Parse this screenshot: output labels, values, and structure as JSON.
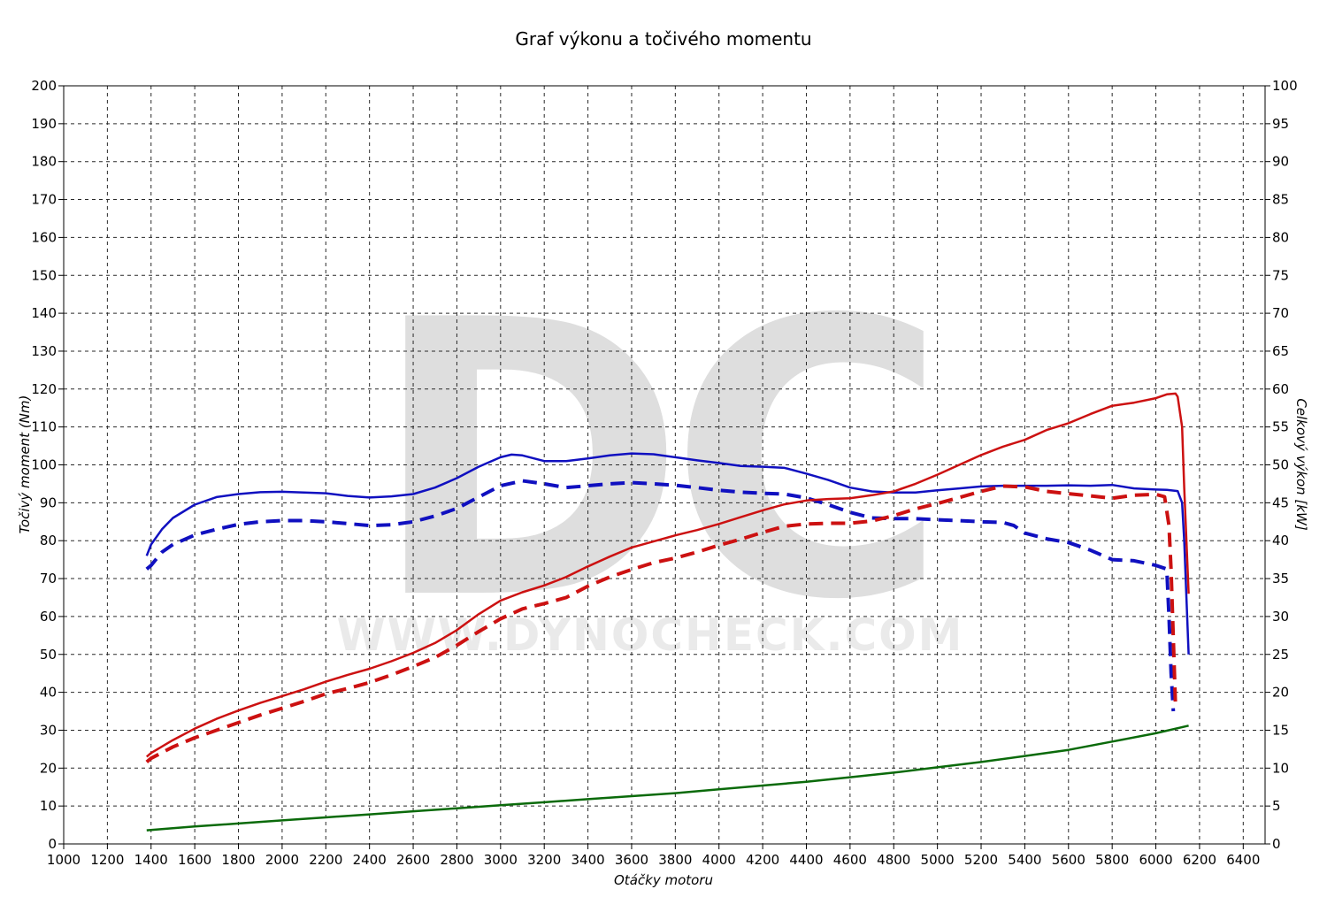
{
  "chart_data": {
    "type": "line",
    "title": "Graf výkonu a točivého momentu",
    "xlabel": "Otáčky motoru",
    "ylabel_left": "Točivý moment (Nm)",
    "ylabel_right": "Celkový výkon [kW]",
    "watermark": {
      "logo": "DC",
      "url": "WWW.DYNOCHECK.COM"
    },
    "xlim": [
      1000,
      6500
    ],
    "ylim_left": [
      0,
      200
    ],
    "ylim_right": [
      0,
      100
    ],
    "x_ticks": [
      1000,
      1200,
      1400,
      1600,
      1800,
      2000,
      2200,
      2400,
      2600,
      2800,
      3000,
      3200,
      3400,
      3600,
      3800,
      4000,
      4200,
      4400,
      4600,
      4800,
      5000,
      5200,
      5400,
      5600,
      5800,
      6000,
      6200,
      6400
    ],
    "y_ticks_left": [
      0,
      10,
      20,
      30,
      40,
      50,
      60,
      70,
      80,
      90,
      100,
      110,
      120,
      130,
      140,
      150,
      160,
      170,
      180,
      190,
      200
    ],
    "y_ticks_right": [
      0,
      5,
      10,
      15,
      20,
      25,
      30,
      35,
      40,
      45,
      50,
      55,
      60,
      65,
      70,
      75,
      80,
      85,
      90,
      95,
      100
    ],
    "grid": true,
    "colors": {
      "torque": "#1010c0",
      "power": "#cc1111",
      "loss": "#0a6a0a",
      "grid": "#2a2a2a",
      "watermark": "#dedede"
    },
    "series": [
      {
        "key": "torque_tuned",
        "axis": "left",
        "color": "#1010c0",
        "dash": false,
        "points": [
          [
            1380,
            76
          ],
          [
            1400,
            79
          ],
          [
            1450,
            83
          ],
          [
            1500,
            86
          ],
          [
            1600,
            89.5
          ],
          [
            1700,
            91.5
          ],
          [
            1800,
            92.3
          ],
          [
            1900,
            92.8
          ],
          [
            2000,
            92.9
          ],
          [
            2100,
            92.7
          ],
          [
            2200,
            92.5
          ],
          [
            2300,
            91.8
          ],
          [
            2400,
            91.4
          ],
          [
            2500,
            91.7
          ],
          [
            2600,
            92.3
          ],
          [
            2700,
            94
          ],
          [
            2800,
            96.5
          ],
          [
            2900,
            99.5
          ],
          [
            3000,
            102
          ],
          [
            3050,
            102.7
          ],
          [
            3100,
            102.5
          ],
          [
            3200,
            101
          ],
          [
            3300,
            101
          ],
          [
            3400,
            101.7
          ],
          [
            3500,
            102.5
          ],
          [
            3600,
            103
          ],
          [
            3700,
            102.8
          ],
          [
            3800,
            102
          ],
          [
            3900,
            101.2
          ],
          [
            4000,
            100.5
          ],
          [
            4100,
            99.7
          ],
          [
            4200,
            99.5
          ],
          [
            4300,
            99.2
          ],
          [
            4400,
            97.7
          ],
          [
            4500,
            96
          ],
          [
            4600,
            94
          ],
          [
            4700,
            93
          ],
          [
            4800,
            92.7
          ],
          [
            4900,
            92.7
          ],
          [
            5000,
            93.3
          ],
          [
            5100,
            93.8
          ],
          [
            5200,
            94.3
          ],
          [
            5300,
            94.5
          ],
          [
            5400,
            94.5
          ],
          [
            5500,
            94.5
          ],
          [
            5600,
            94.6
          ],
          [
            5700,
            94.5
          ],
          [
            5800,
            94.7
          ],
          [
            5900,
            93.8
          ],
          [
            6000,
            93.5
          ],
          [
            6050,
            93.4
          ],
          [
            6100,
            93.1
          ],
          [
            6120,
            90
          ],
          [
            6130,
            80
          ],
          [
            6140,
            65
          ],
          [
            6150,
            50
          ]
        ]
      },
      {
        "key": "torque_stock",
        "axis": "left",
        "color": "#1010c0",
        "dash": true,
        "points": [
          [
            1380,
            72.5
          ],
          [
            1400,
            73.5
          ],
          [
            1450,
            77
          ],
          [
            1500,
            79
          ],
          [
            1600,
            81.5
          ],
          [
            1700,
            83
          ],
          [
            1800,
            84.3
          ],
          [
            1900,
            85
          ],
          [
            2000,
            85.3
          ],
          [
            2100,
            85.3
          ],
          [
            2200,
            85
          ],
          [
            2300,
            84.5
          ],
          [
            2400,
            84
          ],
          [
            2500,
            84.2
          ],
          [
            2600,
            85
          ],
          [
            2700,
            86.5
          ],
          [
            2800,
            88.5
          ],
          [
            2900,
            91.5
          ],
          [
            3000,
            94.5
          ],
          [
            3100,
            95.8
          ],
          [
            3200,
            95
          ],
          [
            3300,
            94
          ],
          [
            3400,
            94.5
          ],
          [
            3500,
            95
          ],
          [
            3600,
            95.3
          ],
          [
            3700,
            95
          ],
          [
            3800,
            94.6
          ],
          [
            3900,
            94
          ],
          [
            4000,
            93.3
          ],
          [
            4100,
            92.8
          ],
          [
            4200,
            92.5
          ],
          [
            4300,
            92.3
          ],
          [
            4400,
            91.3
          ],
          [
            4500,
            89.5
          ],
          [
            4600,
            87.5
          ],
          [
            4700,
            86
          ],
          [
            4800,
            85.8
          ],
          [
            4900,
            85.8
          ],
          [
            5000,
            85.5
          ],
          [
            5100,
            85.3
          ],
          [
            5200,
            85
          ],
          [
            5300,
            84.8
          ],
          [
            5350,
            84
          ],
          [
            5400,
            82
          ],
          [
            5500,
            80.5
          ],
          [
            5600,
            79.5
          ],
          [
            5700,
            77.5
          ],
          [
            5800,
            75
          ],
          [
            5900,
            74.7
          ],
          [
            6000,
            73.5
          ],
          [
            6050,
            72.5
          ],
          [
            6060,
            60
          ],
          [
            6070,
            45
          ],
          [
            6080,
            35
          ]
        ]
      },
      {
        "key": "power_tuned",
        "axis": "right",
        "color": "#cc1111",
        "dash": false,
        "points": [
          [
            1380,
            11.5
          ],
          [
            1400,
            12
          ],
          [
            1500,
            13.7
          ],
          [
            1600,
            15.2
          ],
          [
            1700,
            16.5
          ],
          [
            1800,
            17.6
          ],
          [
            1900,
            18.6
          ],
          [
            2000,
            19.5
          ],
          [
            2100,
            20.4
          ],
          [
            2200,
            21.4
          ],
          [
            2300,
            22.3
          ],
          [
            2400,
            23.1
          ],
          [
            2500,
            24.1
          ],
          [
            2600,
            25.2
          ],
          [
            2700,
            26.5
          ],
          [
            2800,
            28.2
          ],
          [
            2900,
            30.3
          ],
          [
            3000,
            32.1
          ],
          [
            3100,
            33.2
          ],
          [
            3200,
            34.1
          ],
          [
            3300,
            35.2
          ],
          [
            3400,
            36.6
          ],
          [
            3500,
            37.9
          ],
          [
            3600,
            39.1
          ],
          [
            3700,
            39.9
          ],
          [
            3800,
            40.7
          ],
          [
            3900,
            41.4
          ],
          [
            4000,
            42.2
          ],
          [
            4100,
            43.1
          ],
          [
            4200,
            44
          ],
          [
            4300,
            44.8
          ],
          [
            4400,
            45.3
          ],
          [
            4500,
            45.5
          ],
          [
            4600,
            45.6
          ],
          [
            4700,
            46
          ],
          [
            4800,
            46.5
          ],
          [
            4900,
            47.5
          ],
          [
            5000,
            48.7
          ],
          [
            5100,
            50
          ],
          [
            5200,
            51.3
          ],
          [
            5300,
            52.4
          ],
          [
            5400,
            53.3
          ],
          [
            5500,
            54.6
          ],
          [
            5600,
            55.5
          ],
          [
            5700,
            56.7
          ],
          [
            5800,
            57.8
          ],
          [
            5900,
            58.2
          ],
          [
            6000,
            58.8
          ],
          [
            6050,
            59.3
          ],
          [
            6090,
            59.4
          ],
          [
            6100,
            59
          ],
          [
            6120,
            55
          ],
          [
            6130,
            47
          ],
          [
            6140,
            40
          ],
          [
            6150,
            33
          ]
        ]
      },
      {
        "key": "power_stock",
        "axis": "right",
        "color": "#cc1111",
        "dash": true,
        "points": [
          [
            1380,
            10.8
          ],
          [
            1400,
            11.3
          ],
          [
            1500,
            12.8
          ],
          [
            1600,
            14
          ],
          [
            1700,
            15
          ],
          [
            1800,
            16
          ],
          [
            1900,
            17
          ],
          [
            2000,
            17.9
          ],
          [
            2100,
            18.8
          ],
          [
            2200,
            19.8
          ],
          [
            2300,
            20.5
          ],
          [
            2400,
            21.3
          ],
          [
            2500,
            22.3
          ],
          [
            2600,
            23.4
          ],
          [
            2700,
            24.6
          ],
          [
            2800,
            26.2
          ],
          [
            2900,
            28
          ],
          [
            3000,
            29.7
          ],
          [
            3100,
            31
          ],
          [
            3200,
            31.7
          ],
          [
            3300,
            32.5
          ],
          [
            3400,
            34
          ],
          [
            3500,
            35.2
          ],
          [
            3600,
            36.2
          ],
          [
            3700,
            37.1
          ],
          [
            3800,
            37.7
          ],
          [
            3900,
            38.5
          ],
          [
            4000,
            39.4
          ],
          [
            4100,
            40.2
          ],
          [
            4200,
            41.1
          ],
          [
            4300,
            41.9
          ],
          [
            4400,
            42.2
          ],
          [
            4500,
            42.3
          ],
          [
            4600,
            42.3
          ],
          [
            4700,
            42.6
          ],
          [
            4800,
            43.3
          ],
          [
            4900,
            44.2
          ],
          [
            5000,
            44.9
          ],
          [
            5100,
            45.7
          ],
          [
            5200,
            46.5
          ],
          [
            5300,
            47.2
          ],
          [
            5400,
            47.1
          ],
          [
            5500,
            46.5
          ],
          [
            5600,
            46.2
          ],
          [
            5700,
            45.9
          ],
          [
            5800,
            45.6
          ],
          [
            5900,
            46
          ],
          [
            6000,
            46.1
          ],
          [
            6040,
            45.8
          ],
          [
            6060,
            42
          ],
          [
            6070,
            36
          ],
          [
            6080,
            27
          ],
          [
            6090,
            18
          ]
        ]
      },
      {
        "key": "loss_power",
        "axis": "right",
        "color": "#0a6a0a",
        "dash": false,
        "points": [
          [
            1380,
            1.8
          ],
          [
            1600,
            2.3
          ],
          [
            1800,
            2.7
          ],
          [
            2000,
            3.1
          ],
          [
            2200,
            3.5
          ],
          [
            2400,
            3.9
          ],
          [
            2600,
            4.3
          ],
          [
            2800,
            4.7
          ],
          [
            3000,
            5.1
          ],
          [
            3200,
            5.5
          ],
          [
            3400,
            5.9
          ],
          [
            3600,
            6.3
          ],
          [
            3800,
            6.7
          ],
          [
            4000,
            7.2
          ],
          [
            4200,
            7.7
          ],
          [
            4400,
            8.2
          ],
          [
            4600,
            8.8
          ],
          [
            4800,
            9.4
          ],
          [
            5000,
            10.1
          ],
          [
            5200,
            10.8
          ],
          [
            5400,
            11.6
          ],
          [
            5600,
            12.4
          ],
          [
            5800,
            13.5
          ],
          [
            6000,
            14.6
          ],
          [
            6150,
            15.6
          ]
        ]
      }
    ]
  }
}
